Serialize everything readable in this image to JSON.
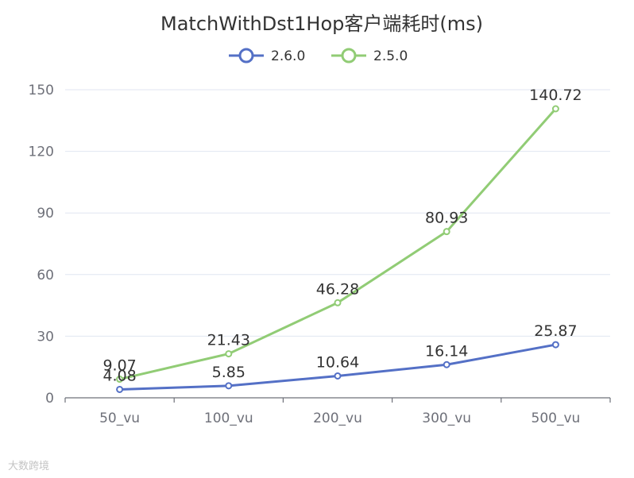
{
  "chart_data": {
    "type": "line",
    "title": "MatchWithDst1Hop客户端耗时(ms)",
    "categories": [
      "50_vu",
      "100_vu",
      "200_vu",
      "300_vu",
      "500_vu"
    ],
    "series": [
      {
        "name": "2.6.0",
        "color": "#5470c6",
        "values": [
          4.08,
          5.85,
          10.64,
          16.14,
          25.87
        ]
      },
      {
        "name": "2.5.0",
        "color": "#91cc75",
        "values": [
          9.07,
          21.43,
          46.28,
          80.93,
          140.72
        ]
      }
    ],
    "ylim": [
      0,
      150
    ],
    "yticks": [
      0,
      30,
      60,
      90,
      120,
      150
    ],
    "grid": true,
    "legend_position": "top-center"
  },
  "watermark": "大数跨境"
}
